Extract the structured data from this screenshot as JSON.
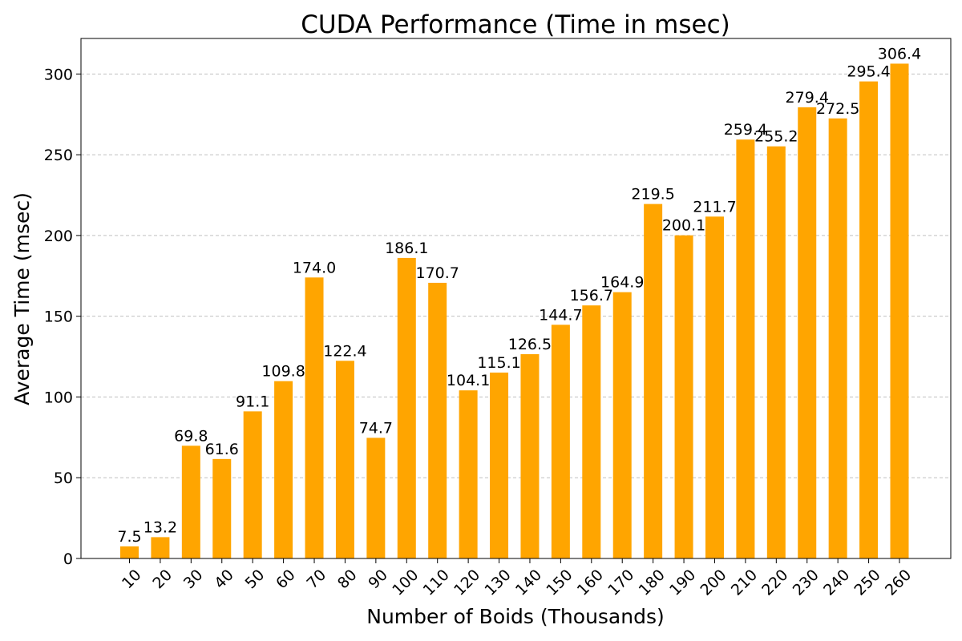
{
  "chart_data": {
    "type": "bar",
    "title": "CUDA Performance (Time in msec)",
    "xlabel": "Number of Boids (Thousands)",
    "ylabel": "Average Time (msec)",
    "categories": [
      "10",
      "20",
      "30",
      "40",
      "50",
      "60",
      "70",
      "80",
      "90",
      "100",
      "110",
      "120",
      "130",
      "140",
      "150",
      "160",
      "170",
      "180",
      "190",
      "200",
      "210",
      "220",
      "230",
      "240",
      "250",
      "260"
    ],
    "values": [
      7.5,
      13.2,
      69.8,
      61.6,
      91.1,
      109.8,
      174.0,
      122.4,
      74.7,
      186.1,
      170.7,
      104.1,
      115.1,
      126.5,
      144.7,
      156.7,
      164.9,
      219.5,
      200.1,
      211.7,
      259.4,
      255.2,
      279.4,
      272.5,
      295.4,
      306.4
    ],
    "value_labels": [
      "7.5",
      "13.2",
      "69.8",
      "61.6",
      "91.1",
      "109.8",
      "174.0",
      "122.4",
      "74.7",
      "186.1",
      "170.7",
      "104.1",
      "115.1",
      "126.5",
      "144.7",
      "156.7",
      "164.9",
      "219.5",
      "200.1",
      "211.7",
      "259.4",
      "255.2",
      "279.4",
      "272.5",
      "295.4",
      "306.4"
    ],
    "ylim": [
      0,
      322
    ],
    "yticks": [
      0,
      50,
      100,
      150,
      200,
      250,
      300
    ],
    "grid": "y-dashed",
    "bar_color": "#ffa500"
  }
}
